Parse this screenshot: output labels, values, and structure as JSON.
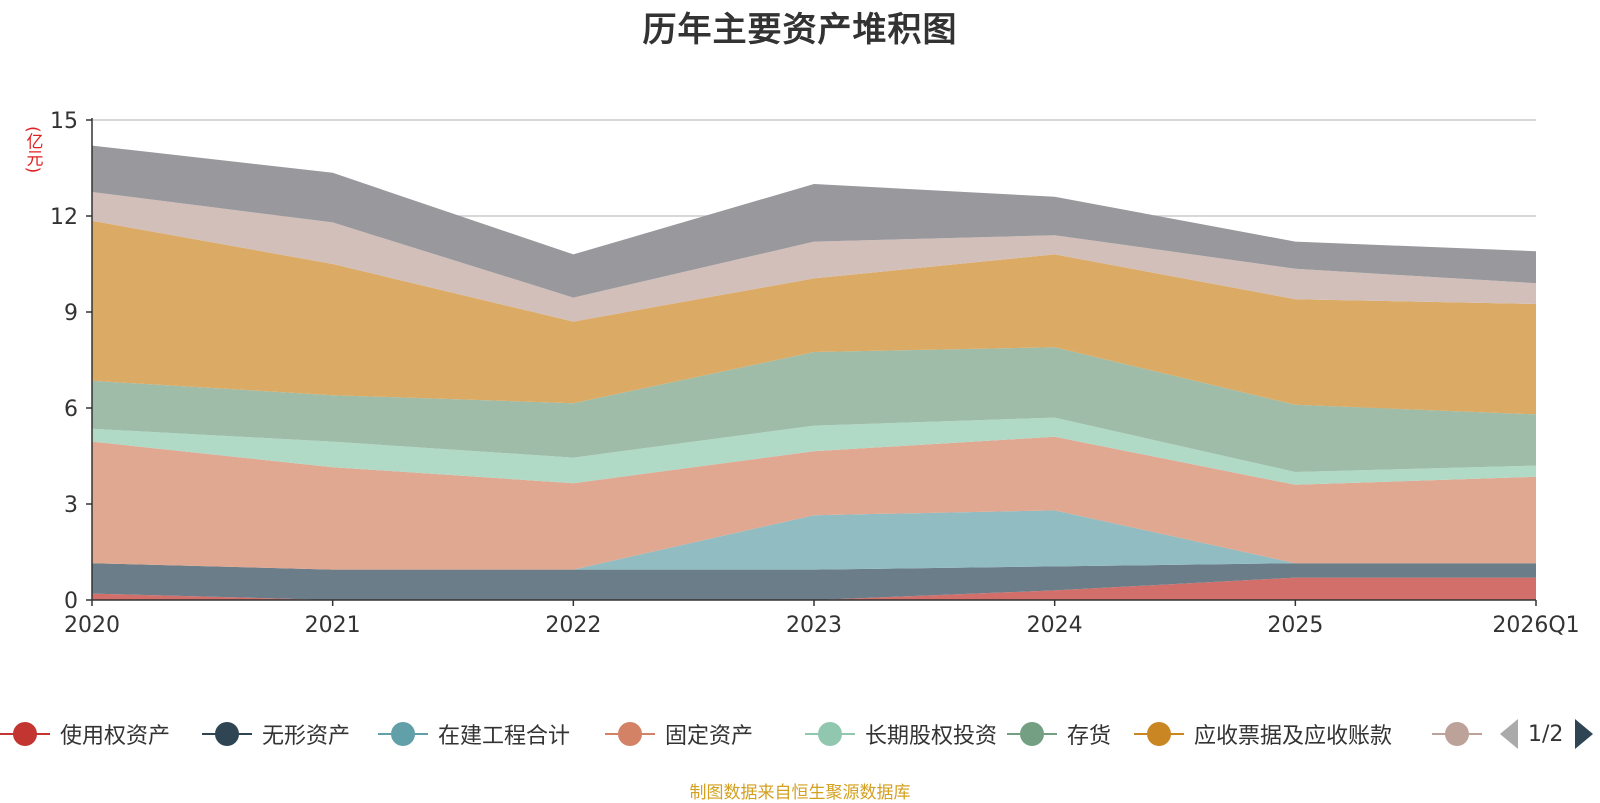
{
  "title": "历年主要资产堆积图",
  "unit": "(亿元)",
  "source": "制图数据来自恒生聚源数据库",
  "pager": {
    "text": "1/2"
  },
  "legend": [
    {
      "label": "使用权资产",
      "color": "#c23531"
    },
    {
      "label": "无形资产",
      "color": "#2f4554"
    },
    {
      "label": "在建工程合计",
      "color": "#61a0a8"
    },
    {
      "label": "固定资产",
      "color": "#d48265"
    },
    {
      "label": "长期股权投资",
      "color": "#91c7ae"
    },
    {
      "label": "存货",
      "color": "#749f83"
    },
    {
      "label": "应收票据及应收账款",
      "color": "#ca8622"
    },
    {
      "label": "",
      "color": "#bda29a"
    }
  ],
  "chart_data": {
    "type": "area",
    "stacked": true,
    "x": [
      "2020",
      "2021",
      "2022",
      "2023",
      "2024",
      "2025",
      "2026Q1"
    ],
    "yticks": [
      "0",
      "3",
      "6",
      "9",
      "12",
      "15"
    ],
    "ylim": [
      0,
      15
    ],
    "grid": true,
    "legend_position": "bottom",
    "series": [
      {
        "name": "使用权资产",
        "color": "#d36f6a",
        "values": [
          0.2,
          0.0,
          0.0,
          0.0,
          0.3,
          0.7,
          0.7
        ]
      },
      {
        "name": "无形资产",
        "color": "#6b7d88",
        "values": [
          0.95,
          0.95,
          0.95,
          0.95,
          0.75,
          0.45,
          0.45
        ]
      },
      {
        "name": "在建工程合计",
        "color": "#90bcc2",
        "values": [
          0.0,
          0.0,
          0.0,
          1.7,
          1.75,
          0.0,
          0.0
        ]
      },
      {
        "name": "固定资产",
        "color": "#e0a791",
        "values": [
          3.8,
          3.2,
          2.7,
          2.0,
          2.3,
          2.45,
          2.7
        ]
      },
      {
        "name": "长期股权投资",
        "color": "#b0d9c6",
        "values": [
          0.4,
          0.8,
          0.8,
          0.8,
          0.6,
          0.4,
          0.35
        ]
      },
      {
        "name": "存货",
        "color": "#9ebca8",
        "values": [
          1.5,
          1.45,
          1.7,
          2.3,
          2.2,
          2.1,
          1.6
        ]
      },
      {
        "name": "应收票据及应收账款",
        "color": "#dbaa64",
        "values": [
          5.0,
          4.1,
          2.55,
          2.3,
          2.9,
          3.3,
          3.45
        ]
      },
      {
        "name": "",
        "color": "#d2bfb9",
        "values": [
          0.9,
          1.3,
          0.75,
          1.15,
          0.6,
          0.95,
          0.65
        ]
      },
      {
        "name": "",
        "color": "#98989d",
        "values": [
          1.45,
          1.55,
          1.35,
          1.8,
          1.2,
          0.85,
          1.0
        ]
      }
    ]
  }
}
